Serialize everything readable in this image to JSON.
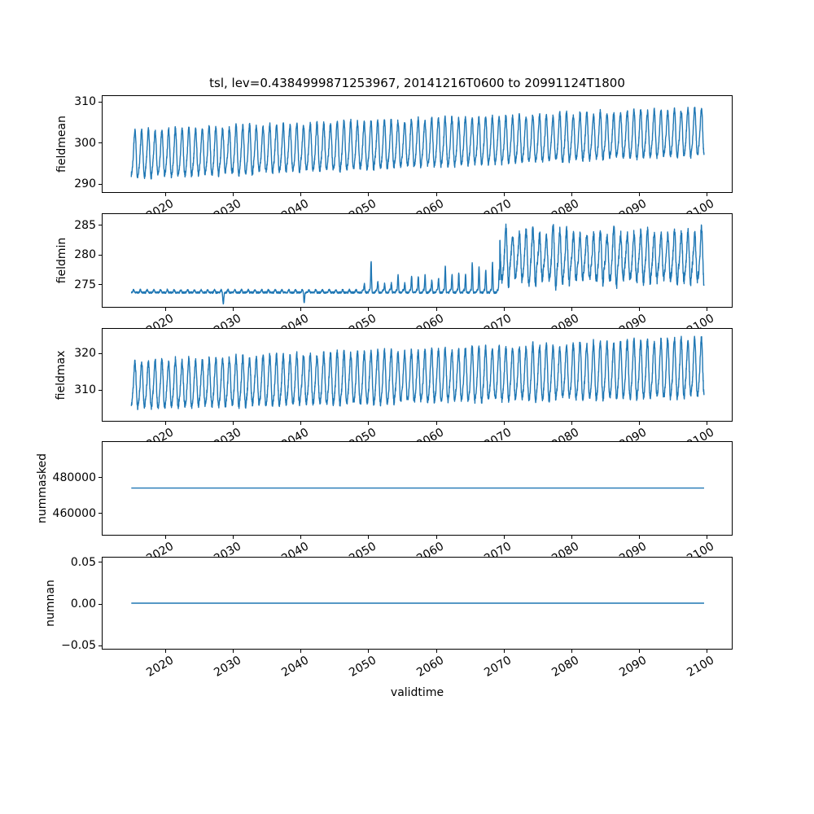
{
  "figure": {
    "title": "tsl, lev=0.4384999871253967, 20141216T0600 to 20991124T1800",
    "background": "#ffffff",
    "line_color": "#1f77b4"
  },
  "x_axis": {
    "label": "validtime",
    "lim": [
      2010.7,
      2104.0
    ],
    "data_start": 2014.96,
    "data_end": 2099.9,
    "ticks": [
      {
        "value": 2020,
        "label": "2020"
      },
      {
        "value": 2030,
        "label": "2030"
      },
      {
        "value": 2040,
        "label": "2040"
      },
      {
        "value": 2050,
        "label": "2050"
      },
      {
        "value": 2060,
        "label": "2060"
      },
      {
        "value": 2070,
        "label": "2070"
      },
      {
        "value": 2080,
        "label": "2080"
      },
      {
        "value": 2090,
        "label": "2090"
      },
      {
        "value": 2100,
        "label": "2100"
      }
    ]
  },
  "chart_data": [
    {
      "type": "line",
      "name": "fieldmean",
      "ylabel": "fieldmean",
      "ylim": [
        287.7,
        311.4
      ],
      "yticks": [
        {
          "value": 290,
          "label": "290"
        },
        {
          "value": 300,
          "label": "300"
        },
        {
          "value": 310,
          "label": "310"
        }
      ],
      "series": {
        "kind": "seasonal",
        "seed": 7,
        "base": 296.5,
        "base_ref_year": 2015,
        "slope": 0.066,
        "amplitude": 6.2,
        "amplitude_slope": 0,
        "secondary": 0.16,
        "noise": 0.6,
        "summary": "dense annual cycle ~290-303 in 2015 rising to ~295-309 by 2100"
      }
    },
    {
      "type": "line",
      "name": "fieldmin",
      "ylabel": "fieldmin",
      "ylim": [
        271.0,
        286.85
      ],
      "yticks": [
        {
          "value": 275,
          "label": "275"
        },
        {
          "value": 280,
          "label": "280"
        },
        {
          "value": 285,
          "label": "285"
        }
      ],
      "series": {
        "kind": "min_regime",
        "seed": 21,
        "base": 273.45,
        "ripple": 0.45,
        "noise": 0.15,
        "dips": [
          {
            "t": 2028.6,
            "depth": 1.9,
            "width": 0.1
          },
          {
            "t": 2040.6,
            "depth": 1.8,
            "width": 0.09
          }
        ],
        "spike_start": 2049,
        "regime2_start": 2069.6,
        "spike_amp_start": 1.3,
        "spike_amp_end": 5.0,
        "first_spike_year": 2050,
        "first_spike_amp": 5.3,
        "regime2_mid": 279.3,
        "regime2_amp": 5.0,
        "regime2_noise": 0.7,
        "floor": 273.5,
        "summary": "flat ~273.5 until 2049 with dips to ~271.6 near 2028/2040; growing annual spikes to ~278 by 2069; strong cycle ~274-286 after 2070"
      }
    },
    {
      "type": "line",
      "name": "fieldmax",
      "ylabel": "fieldmax",
      "ylim": [
        301.1,
        326.7
      ],
      "yticks": [
        {
          "value": 310,
          "label": "310"
        },
        {
          "value": 320,
          "label": "320"
        }
      ],
      "series": {
        "kind": "seasonal",
        "seed": 11,
        "base": 310.6,
        "base_ref_year": 2015,
        "slope": 0.055,
        "amplitude": 6.8,
        "amplitude_slope": 0.022,
        "secondary": 0.15,
        "noise": 0.8,
        "summary": "dense annual cycle ~304-318 in 2015 rising to ~306-325 by 2100"
      }
    },
    {
      "type": "line",
      "name": "nummasked",
      "ylabel": "nummasked",
      "ylim": [
        447000,
        500000
      ],
      "yticks": [
        {
          "value": 480000,
          "label": "480000"
        },
        {
          "value": 460000,
          "label": "460000"
        }
      ],
      "series": {
        "kind": "flat",
        "value": 473700,
        "summary": "constant ~473700 for whole period"
      }
    },
    {
      "type": "line",
      "name": "numnan",
      "ylabel": "numnan",
      "ylim": [
        -0.0555,
        0.0555
      ],
      "yticks": [
        {
          "value": 0.05,
          "label": "0.05"
        },
        {
          "value": 0.0,
          "label": "0.00"
        },
        {
          "value": -0.05,
          "label": "−0.05"
        }
      ],
      "series": {
        "kind": "flat",
        "value": 0,
        "summary": "constant 0.00 for whole period"
      }
    }
  ]
}
